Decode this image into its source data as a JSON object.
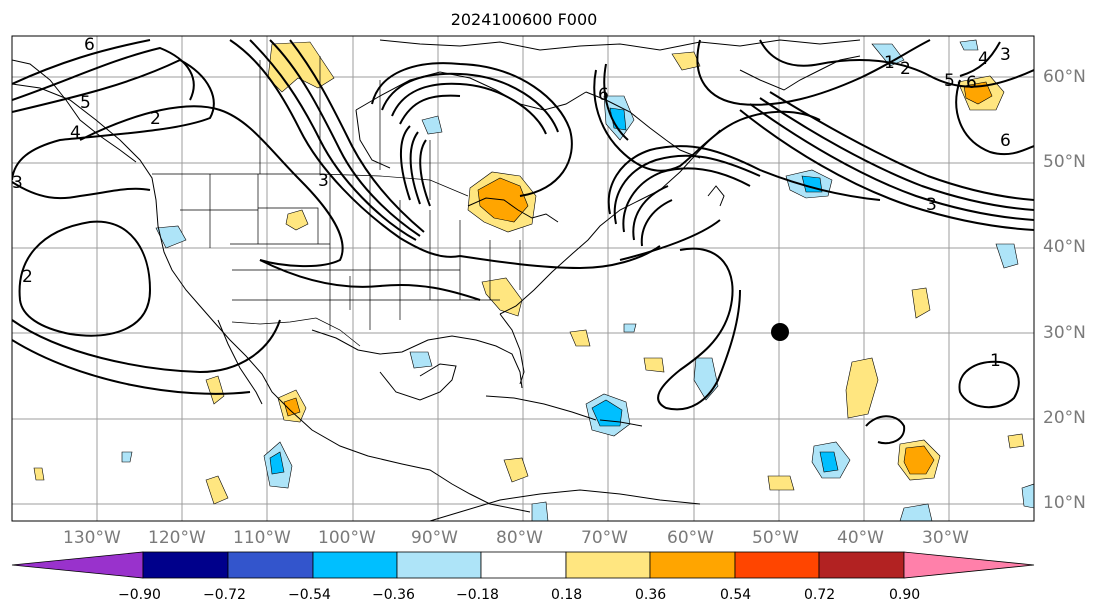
{
  "title": "2024100600 F000",
  "lon_labels": [
    "130°W",
    "120°W",
    "110°W",
    "100°W",
    "90°W",
    "80°W",
    "70°W",
    "60°W",
    "50°W",
    "40°W",
    "30°W"
  ],
  "lat_labels": [
    "60°N",
    "50°N",
    "40°N",
    "30°N",
    "20°N",
    "10°N"
  ],
  "colorbar": {
    "ticks": [
      "−0.90",
      "−0.72",
      "−0.54",
      "−0.36",
      "−0.18",
      "0.18",
      "0.36",
      "0.54",
      "0.72",
      "0.90"
    ],
    "colors": [
      "#9932cc",
      "#00008b",
      "#3355cc",
      "#00bfff",
      "#aee4f8",
      "#ffffff",
      "#ffe680",
      "#ffa500",
      "#ff4500",
      "#b22222",
      "#ff80aa"
    ]
  },
  "contour_labels": [
    "6",
    "4",
    "3",
    "2",
    "5",
    "6",
    "1",
    "2",
    "3",
    "4",
    "5",
    "6",
    "6",
    "3",
    "2",
    "3",
    "1"
  ],
  "marker": "black-dot"
}
